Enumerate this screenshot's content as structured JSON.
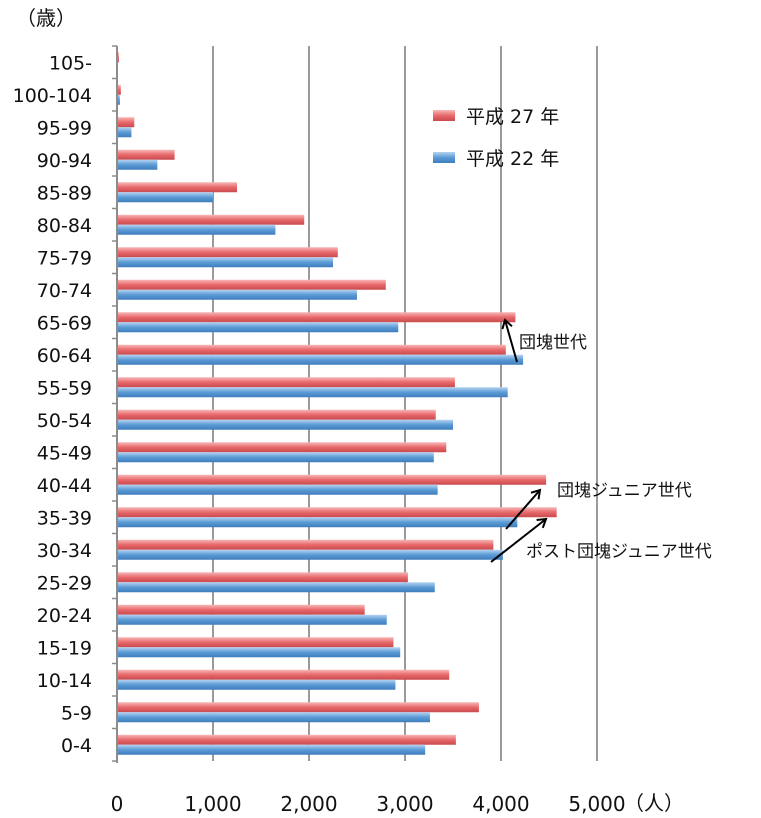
{
  "chart_data": {
    "type": "bar",
    "orientation": "horizontal",
    "y_unit_label": "（歳）",
    "x_unit_label": "（人）",
    "categories": [
      "105-",
      "100-104",
      "95-99",
      "90-94",
      "85-89",
      "80-84",
      "75-79",
      "70-74",
      "65-69",
      "60-64",
      "55-59",
      "50-54",
      "45-49",
      "40-44",
      "35-39",
      "30-34",
      "25-29",
      "20-24",
      "15-19",
      "10-14",
      "5-9",
      "0-4"
    ],
    "series": [
      {
        "name": "平成 27 年",
        "color": "#e8696b",
        "values": [
          20,
          40,
          180,
          600,
          1250,
          1950,
          2300,
          2800,
          4150,
          4050,
          3520,
          3320,
          3430,
          4470,
          4580,
          3920,
          3030,
          2580,
          2880,
          3460,
          3770,
          3530
        ]
      },
      {
        "name": "平成 22 年",
        "color": "#5b9bd5",
        "values": [
          10,
          30,
          150,
          420,
          1000,
          1650,
          2250,
          2500,
          2930,
          4230,
          4070,
          3500,
          3300,
          3340,
          4170,
          4020,
          3310,
          2810,
          2950,
          2900,
          3260,
          3210
        ]
      }
    ],
    "x_ticks": [
      "0",
      "1,000",
      "2,000",
      "3,000",
      "4,000",
      "5,000"
    ],
    "xlim": [
      0,
      5000
    ],
    "grid": true,
    "legend_position": "top-right",
    "annotations": [
      {
        "text": "団塊世代",
        "from_category": "60-64",
        "to_category": "65-69",
        "value": 4150
      },
      {
        "text": "団塊ジュニア世代",
        "from_category": "35-39",
        "to_category": "40-44",
        "value": 4470
      },
      {
        "text": "ポスト団塊ジュニア世代",
        "from_category": "30-34",
        "to_category": "35-39",
        "value": 4580
      }
    ]
  }
}
